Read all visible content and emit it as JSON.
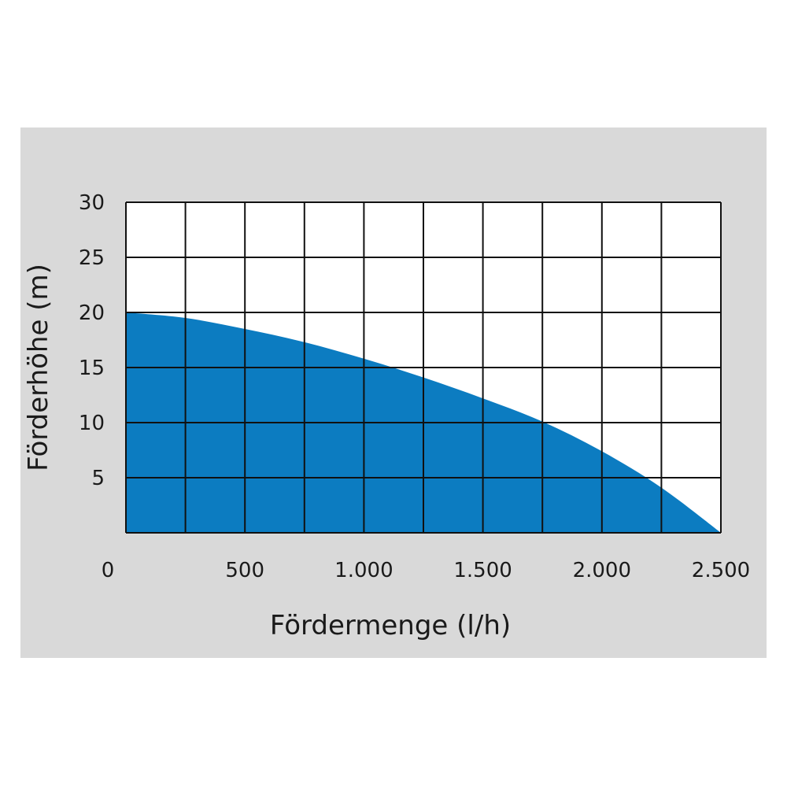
{
  "chart_data": {
    "type": "area",
    "title": "",
    "xlabel": "Fördermenge (l/h)",
    "ylabel": "Förderhöhe (m)",
    "xlim": [
      0,
      2500
    ],
    "ylim": [
      0,
      30
    ],
    "grid": true,
    "fill_color": "#0c7cc1",
    "x_ticks": [
      0,
      250,
      500,
      750,
      1000,
      1250,
      1500,
      1750,
      2000,
      2250,
      2500
    ],
    "x_tick_labels": [
      {
        "value": 0,
        "label": "0"
      },
      {
        "value": 500,
        "label": "500"
      },
      {
        "value": 1000,
        "label": "1.000"
      },
      {
        "value": 1500,
        "label": "1.500"
      },
      {
        "value": 2000,
        "label": "2.000"
      },
      {
        "value": 2500,
        "label": "2.500"
      }
    ],
    "y_tick_labels": [
      {
        "value": 5,
        "label": "5"
      },
      {
        "value": 10,
        "label": "10"
      },
      {
        "value": 15,
        "label": "15"
      },
      {
        "value": 20,
        "label": "20"
      },
      {
        "value": 25,
        "label": "25"
      },
      {
        "value": 30,
        "label": "30"
      }
    ],
    "x": [
      0,
      250,
      500,
      750,
      1000,
      1250,
      1500,
      1750,
      2000,
      2250,
      2500
    ],
    "values": [
      20,
      19.5,
      18.5,
      17.3,
      15.8,
      14.1,
      12.2,
      10.1,
      7.4,
      4.1,
      0
    ]
  }
}
